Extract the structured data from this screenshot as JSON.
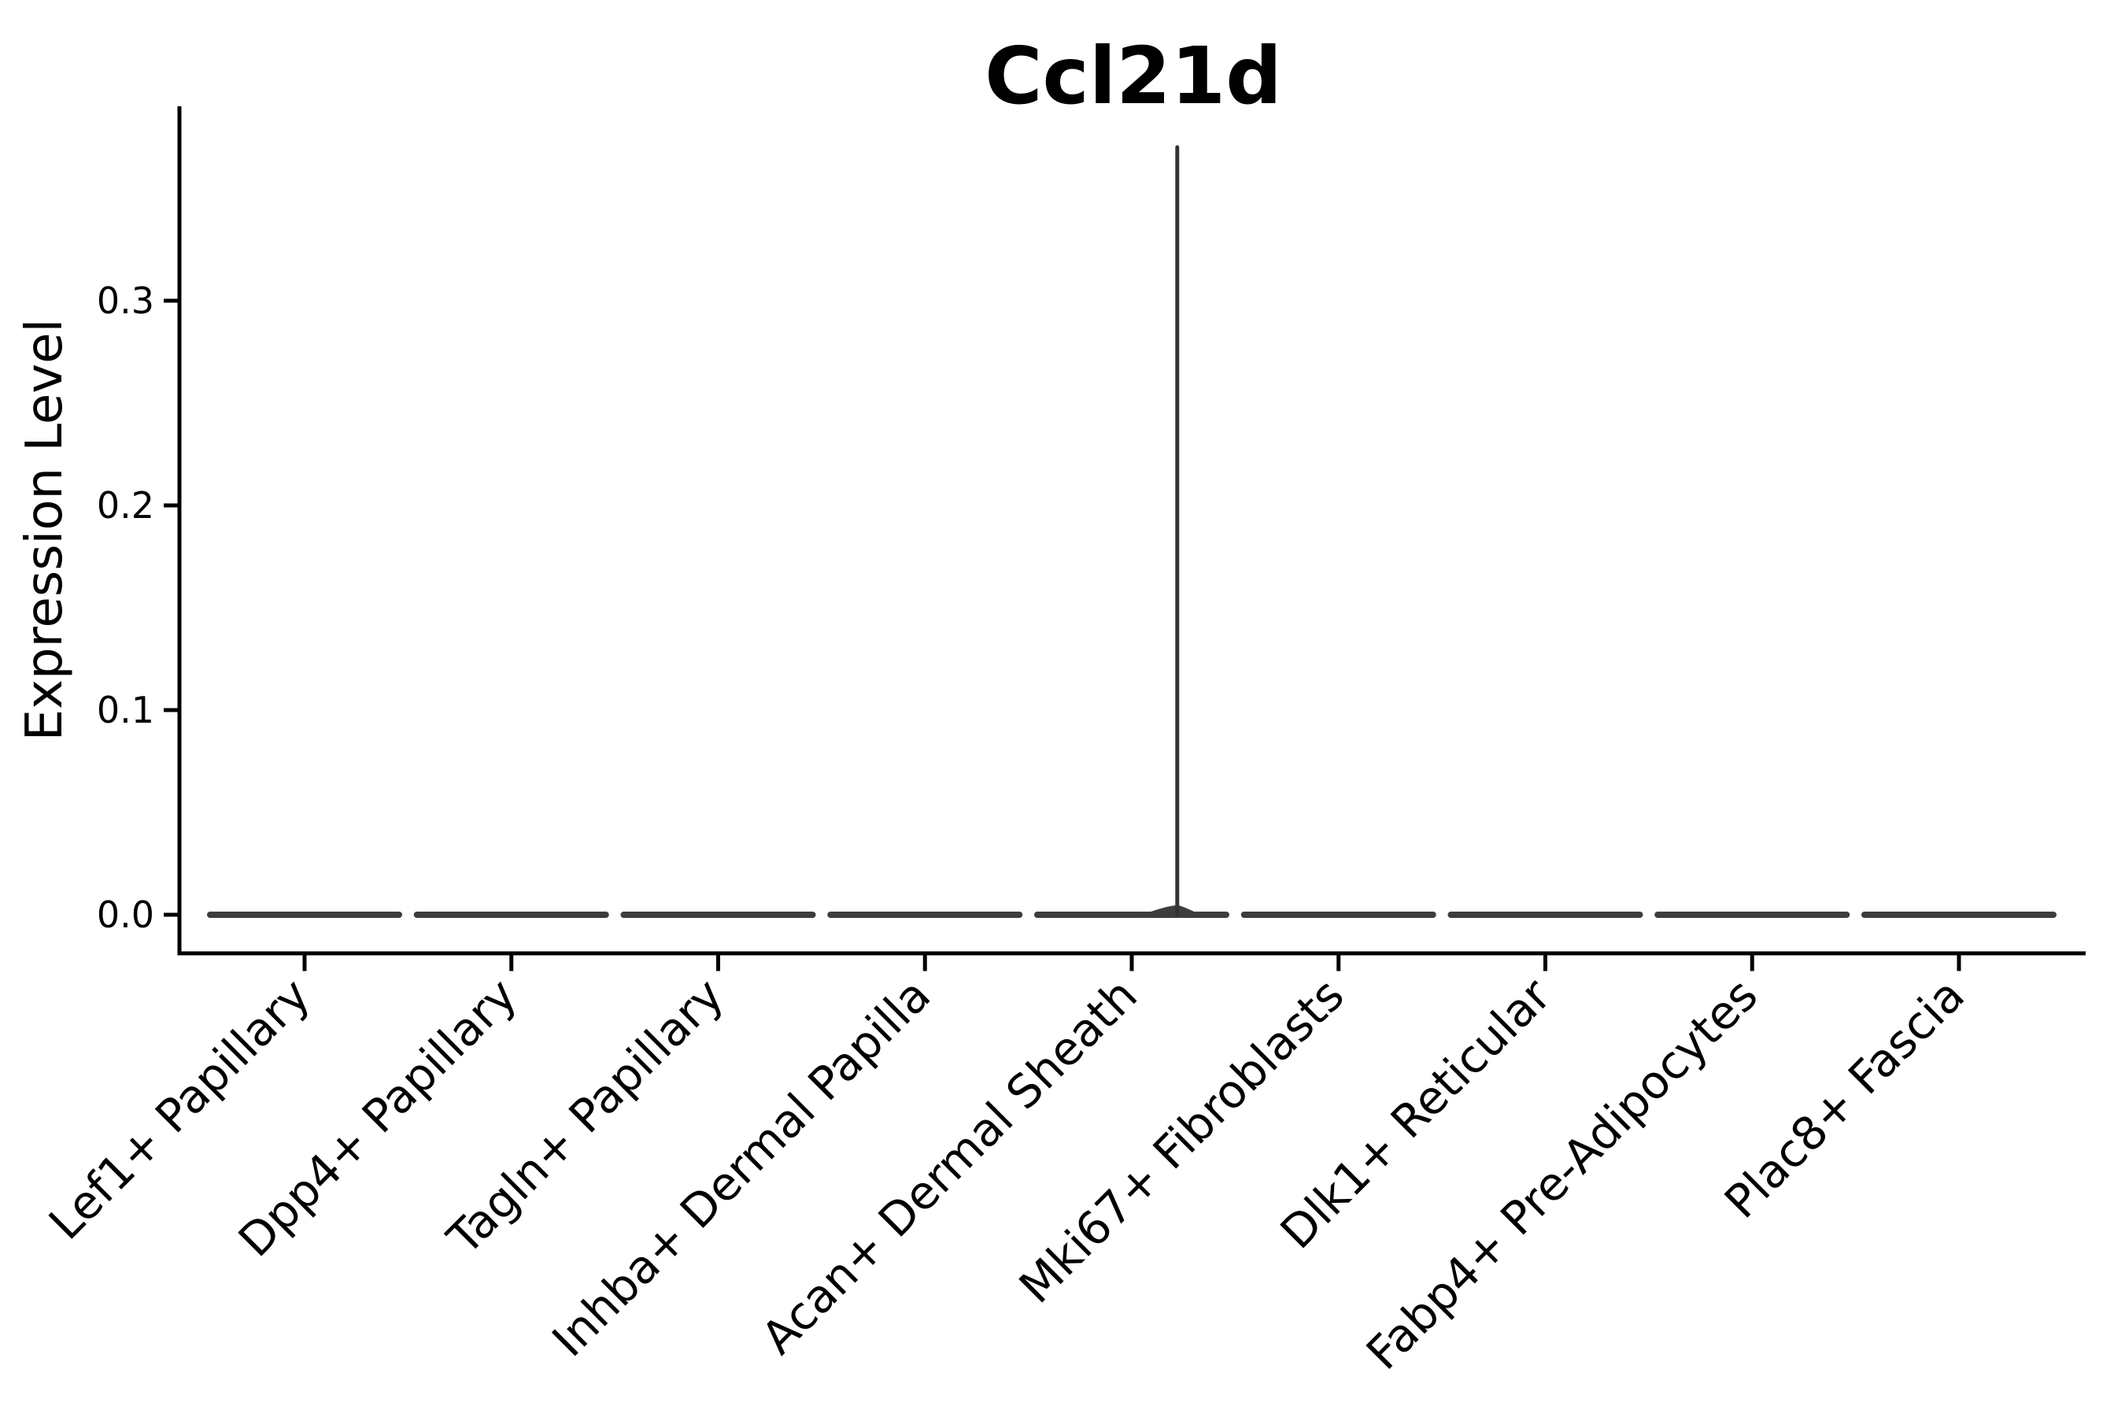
{
  "chart_data": {
    "type": "violin",
    "title": "Ccl21d",
    "ylabel": "Expression Level",
    "xlabel": "",
    "categories": [
      "Lef1+ Papillary",
      "Dpp4+ Papillary",
      "Tagln+ Papillary",
      "Inhba+ Dermal Papilla",
      "Acan+ Dermal Sheath",
      "Mki67+ Fibroblasts",
      "Dlk1+ Reticular",
      "Fabp4+ Pre-Adipocytes",
      "Plac8+ Fascia"
    ],
    "yticks": [
      {
        "label": "0.0",
        "value": 0.0
      },
      {
        "label": "0.1",
        "value": 0.1
      },
      {
        "label": "0.2",
        "value": 0.2
      },
      {
        "label": "0.3",
        "value": 0.3
      }
    ],
    "ylim": [
      0.0,
      0.395
    ],
    "grid": false,
    "legend": "none",
    "x_label_rotation_deg": 45,
    "violins": [
      {
        "category": "Lef1+ Papillary",
        "baseline": 0.0,
        "max": 0.0
      },
      {
        "category": "Dpp4+ Papillary",
        "baseline": 0.0,
        "max": 0.0
      },
      {
        "category": "Tagln+ Papillary",
        "baseline": 0.0,
        "max": 0.0
      },
      {
        "category": "Inhba+ Dermal Papilla",
        "baseline": 0.0,
        "max": 0.0
      },
      {
        "category": "Acan+ Dermal Sheath",
        "baseline": 0.0,
        "max": 0.375,
        "tail_x_offset_frac": 0.22
      },
      {
        "category": "Mki67+ Fibroblasts",
        "baseline": 0.0,
        "max": 0.0
      },
      {
        "category": "Dlk1+ Reticular",
        "baseline": 0.0,
        "max": 0.0
      },
      {
        "category": "Fabp4+ Pre-Adipocytes",
        "baseline": 0.0,
        "max": 0.0
      },
      {
        "category": "Plac8+ Fascia",
        "baseline": 0.0,
        "max": 0.0
      }
    ],
    "colors": {
      "violin": "#3d3d3d",
      "tail": "#333333",
      "axis": "#000000",
      "text": "#000000",
      "background": "#ffffff"
    }
  }
}
